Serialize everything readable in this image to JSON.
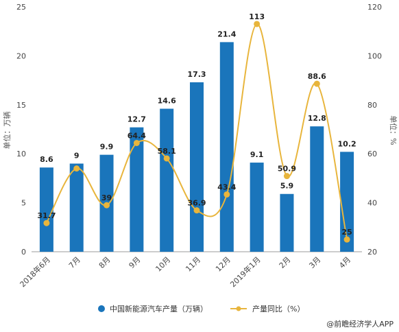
{
  "chart_data": {
    "type": "bar",
    "categories": [
      "2018年6月",
      "7月",
      "8月",
      "9月",
      "10月",
      "11月",
      "12月",
      "2019年1月",
      "2月",
      "3月",
      "4月"
    ],
    "series": [
      {
        "name": "中国新能源汽车产量（万辆）",
        "type": "bar",
        "axis": "left",
        "values": [
          8.6,
          9,
          9.9,
          12.7,
          14.6,
          17.3,
          21.4,
          9.1,
          5.9,
          12.8,
          10.2
        ],
        "labels": [
          "8.6",
          "9",
          "9.9",
          "12.7",
          "14.6",
          "17.3",
          "21.4",
          "9.1",
          "5.9",
          "12.8",
          "10.2"
        ]
      },
      {
        "name": "产量同比（%）",
        "type": "line",
        "smooth": true,
        "axis": "right",
        "values": [
          31.7,
          54,
          39,
          64.4,
          58.1,
          36.9,
          43.4,
          113,
          50.9,
          88.6,
          25
        ],
        "labels": [
          "31.7",
          "",
          "39",
          "64.4",
          "58.1",
          "36.9",
          "43.4",
          "113",
          "50.9",
          "88.6",
          "25"
        ]
      }
    ],
    "ylabel_left": "单位：万辆",
    "ylabel_right": "单位：%",
    "ylim_left": [
      0,
      25
    ],
    "yticks_left": [
      "0",
      "5",
      "10",
      "15",
      "20",
      "25"
    ],
    "ylim_right": [
      20,
      120
    ],
    "yticks_right": [
      "20",
      "40",
      "60",
      "80",
      "100",
      "120"
    ],
    "grid": false,
    "legend_position": "bottom",
    "colors": {
      "bar": "#1a75bb",
      "line": "#e8b53c",
      "marker": "#e8b53c"
    }
  },
  "legend": {
    "bar_label": "中国新能源汽车产量（万辆）",
    "line_label": "产量同比（%）"
  },
  "source": "@前瞻经济学人APP"
}
